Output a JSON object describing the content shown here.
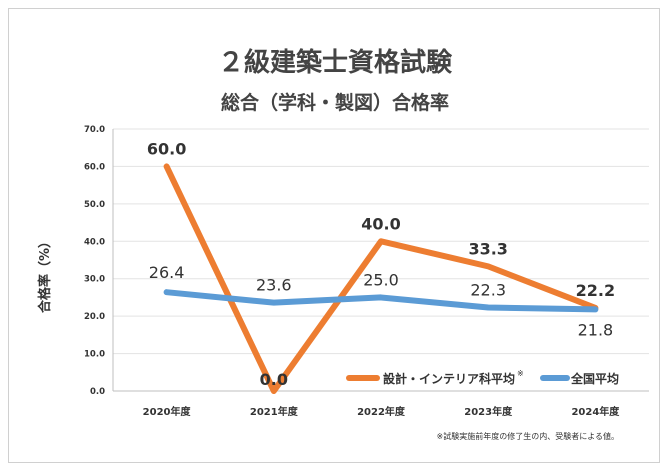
{
  "chart_data": {
    "type": "line",
    "title": "２級建築士資格試験",
    "subtitle": "総合（学科・製図）合格率",
    "ylabel": "合格率（%）",
    "xlabel": "",
    "categories": [
      "2020年度",
      "2021年度",
      "2022年度",
      "2023年度",
      "2024年度"
    ],
    "ylim": [
      0,
      70
    ],
    "yticks": [
      "0.0",
      "10.0",
      "20.0",
      "30.0",
      "40.0",
      "50.0",
      "60.0",
      "70.0"
    ],
    "grid": true,
    "legend_position": "bottom-right",
    "series": [
      {
        "name": "設計・インテリア科平均",
        "legend_mark": "※",
        "color": "#ed7d31",
        "values": [
          60.0,
          0.0,
          40.0,
          33.3,
          22.2
        ],
        "labels": [
          "60.0",
          "0.0",
          "40.0",
          "33.3",
          "22.2"
        ]
      },
      {
        "name": "全国平均",
        "color": "#5b9bd5",
        "values": [
          26.4,
          23.6,
          25.0,
          22.3,
          21.8
        ],
        "labels": [
          "26.4",
          "23.6",
          "25.0",
          "22.3",
          "21.8"
        ]
      }
    ],
    "footnote": "※試験実施前年度の修了生の内、受験者による値。"
  }
}
